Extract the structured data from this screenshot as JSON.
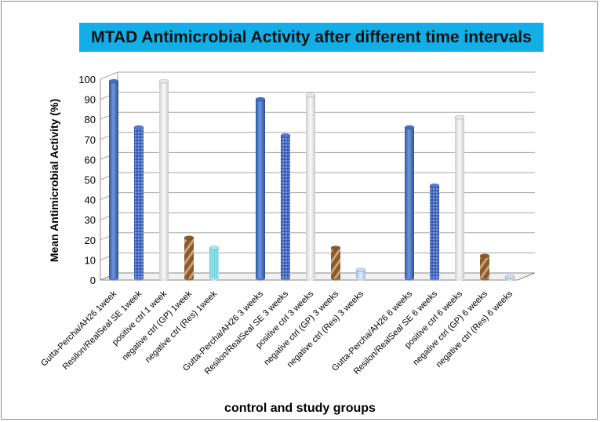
{
  "chart_data": {
    "type": "bar",
    "title": "MTAD Antimicrobial Activity after different time intervals",
    "xlabel": "control and study groups",
    "ylabel": "Mean Antimicrobial Activity (%)",
    "ylim": [
      0,
      100
    ],
    "yticks": [
      0,
      10,
      20,
      30,
      40,
      50,
      60,
      70,
      80,
      90,
      100
    ],
    "grid": true,
    "title_bg_color": "#13aee6",
    "categories": [
      "Gutta-Percha/AH26 1week",
      "Resilon/RealSeal SE 1week",
      "positive ctrl 1 week",
      "negative ctrl (GP) 1week",
      "negative ctrl (Res) 1week",
      "Gutta-Percha/AH26 3 weeks",
      "Resilon/RealSeal SE 3 weeks",
      "positive ctrl 3 weeks",
      "negative ctrl (GP) 3 weeks",
      "negative ctrl (Res) 3 weeks",
      "Gutta-Percha/AH26 6 weeks",
      "Resilon/RealSeal SE 6 weeks",
      "positive ctrl 6 weeks",
      "negative ctrl (GP) 6 weeks",
      "negative ctrl (Res) 6 weeks"
    ],
    "values": [
      99,
      76,
      99,
      21,
      16,
      90,
      72,
      92,
      16,
      5,
      76,
      47,
      81,
      12,
      1.5
    ],
    "bar_styles": [
      "blue",
      "dotted",
      "white",
      "wood",
      "cyan",
      "blue",
      "dotted",
      "white",
      "wood",
      "lightblue",
      "blue",
      "dotted",
      "white",
      "wood",
      "lightblue"
    ],
    "colors": {
      "blue": "#3f6fc0",
      "dotted": "#5577cc",
      "white": "#e8e8e8",
      "wood": "#8a5a2b",
      "cyan": "#a8e6ee",
      "lightblue": "#c8daf4"
    }
  }
}
